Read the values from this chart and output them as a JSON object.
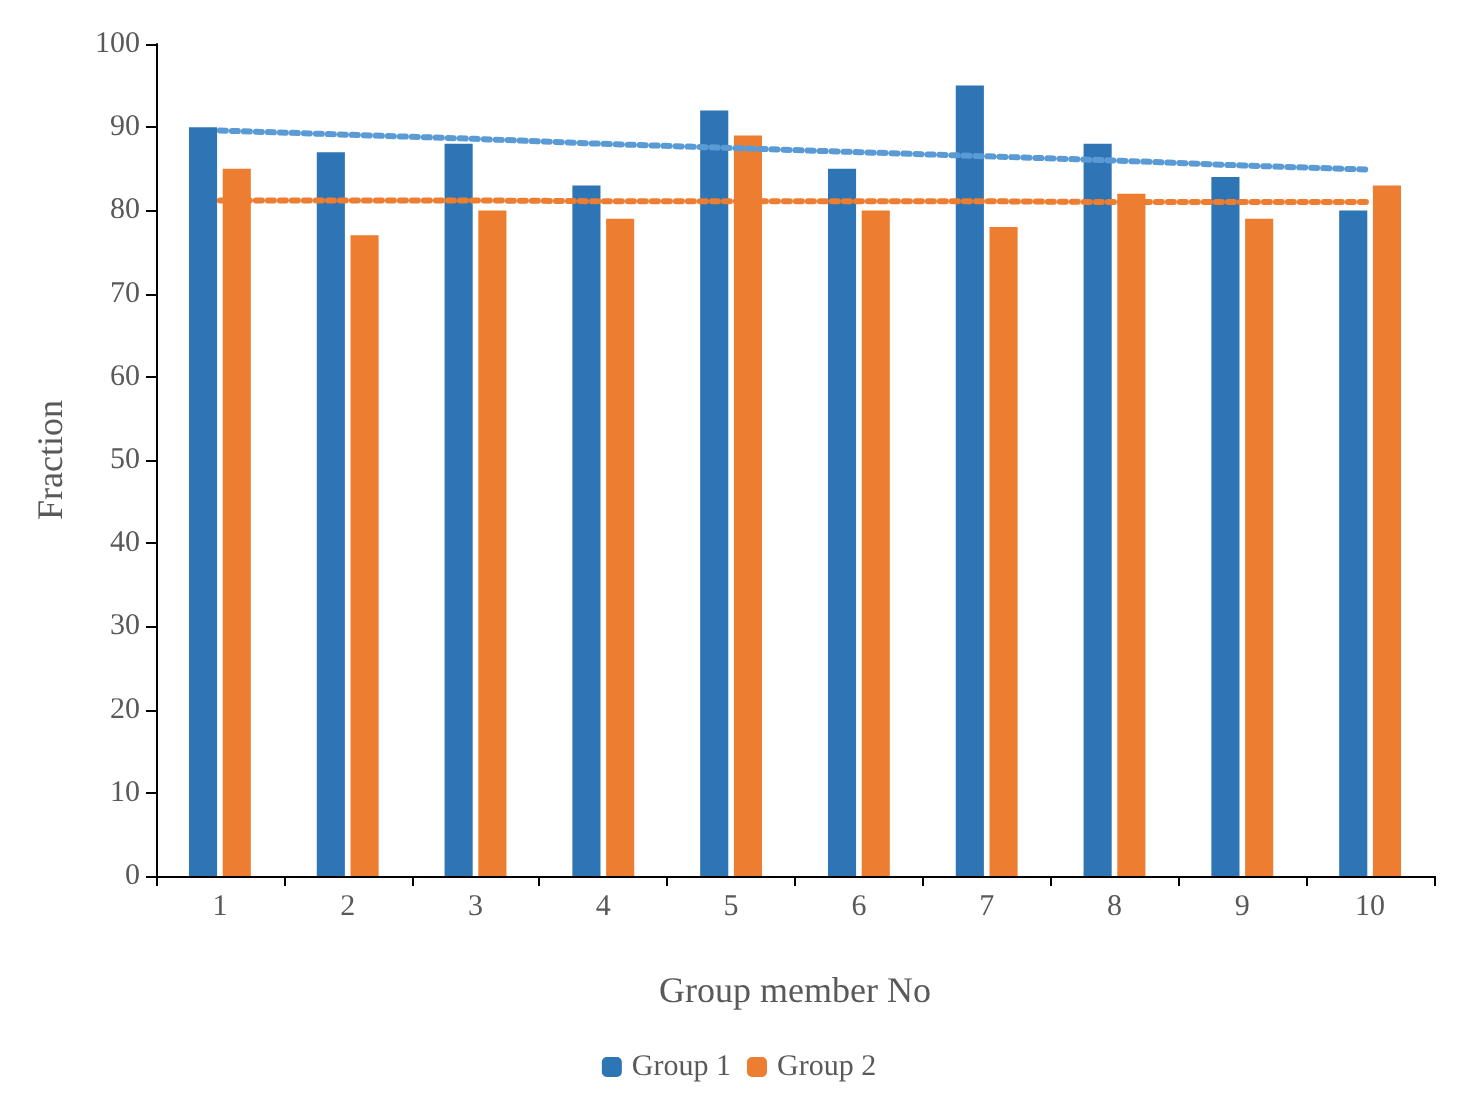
{
  "chart_data": {
    "type": "bar",
    "xlabel": "Group member No",
    "ylabel": "Fraction",
    "categories": [
      "1",
      "2",
      "3",
      "4",
      "5",
      "6",
      "7",
      "8",
      "9",
      "10"
    ],
    "series": [
      {
        "name": "Group 1",
        "color": "#2e75b6",
        "values": [
          90,
          87,
          88,
          83,
          92,
          85,
          95,
          88,
          84,
          80
        ]
      },
      {
        "name": "Group 2",
        "color": "#ed7d31",
        "values": [
          85,
          77,
          80,
          79,
          89,
          80,
          78,
          82,
          79,
          83
        ]
      },
      {
        "type": "line",
        "color": "#5b9bd5",
        "line_style": "dotted",
        "values": [
          89.6,
          89.1,
          88.6,
          88.0,
          87.5,
          87.0,
          86.5,
          86.0,
          85.4,
          84.9
        ]
      },
      {
        "type": "line",
        "color": "#ed7d31",
        "line_style": "dotted",
        "values": [
          81.2,
          81.2,
          81.2,
          81.1,
          81.1,
          81.1,
          81.1,
          81.0,
          81.0,
          81.0
        ]
      }
    ],
    "ylim": [
      0,
      100
    ],
    "yticks": [
      0,
      10,
      20,
      30,
      40,
      50,
      60,
      70,
      80,
      90,
      100
    ],
    "grid": false,
    "legend": "bottom"
  }
}
